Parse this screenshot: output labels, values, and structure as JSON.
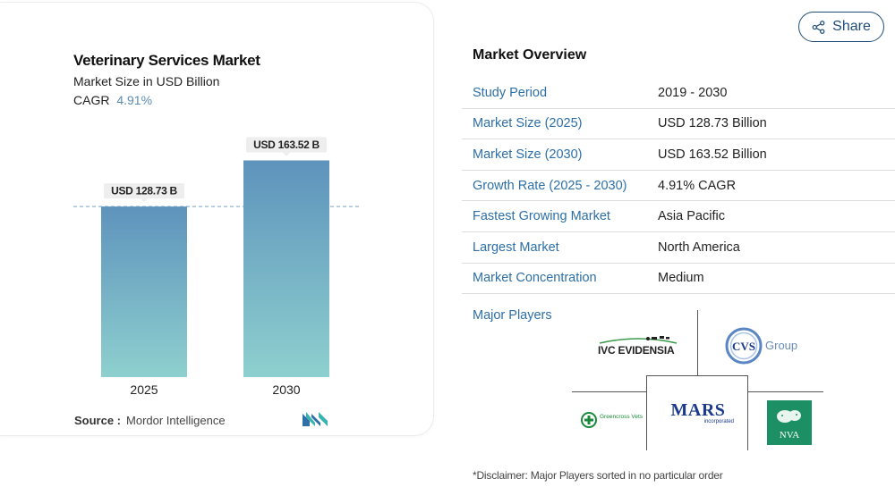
{
  "chart_data": {
    "type": "bar",
    "title": "Veterinary Services Market",
    "subtitle": "Market Size in USD Billion",
    "cagr_label": "CAGR",
    "cagr_value": "4.91%",
    "categories": [
      "2025",
      "2030"
    ],
    "values": [
      128.73,
      163.52
    ],
    "data_labels": [
      "USD 128.73 B",
      "USD 163.52 B"
    ],
    "reference_line_value": 128.73,
    "ylim": [
      0,
      180
    ],
    "grid": false,
    "colors": {
      "bar_top": "#5e93bc",
      "bar_bottom": "#8ed0cf",
      "reference_line": "#8fb2d2"
    }
  },
  "source": {
    "label": "Source :",
    "value": "Mordor Intelligence"
  },
  "share": {
    "label": "Share"
  },
  "overview": {
    "title": "Market Overview",
    "rows": [
      {
        "key": "Study Period",
        "value": "2019 - 2030"
      },
      {
        "key": "Market Size (2025)",
        "value": "USD 128.73 Billion"
      },
      {
        "key": "Market Size (2030)",
        "value": "USD 163.52 Billion"
      },
      {
        "key": "Growth Rate (2025 - 2030)",
        "value": "4.91% CAGR"
      },
      {
        "key": "Fastest Growing Market",
        "value": "Asia Pacific"
      },
      {
        "key": "Largest Market",
        "value": "North America"
      },
      {
        "key": "Market Concentration",
        "value": "Medium"
      }
    ]
  },
  "players": {
    "label": "Major Players",
    "ivc": "IVC EVIDENSIA",
    "cvs_mark": "CVS",
    "cvs_word": "Group",
    "mars_big": "MARS",
    "mars_small": "incorporated",
    "greencross": "Greencross Vets",
    "nva": "NVA"
  },
  "disclaimer": "*Disclaimer: Major Players sorted in no particular order",
  "colors": {
    "accent": "#2d6fa8",
    "share_border": "#1f4d77"
  }
}
